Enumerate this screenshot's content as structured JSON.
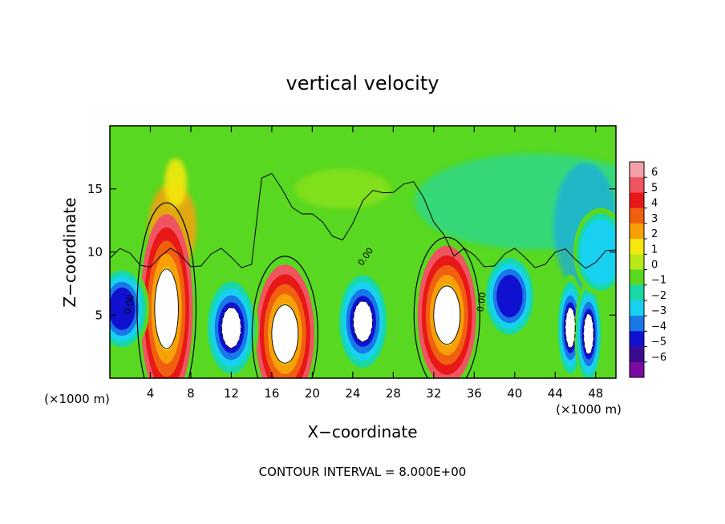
{
  "chart_data": {
    "type": "heatmap",
    "title": "vertical velocity",
    "xlabel": "X−coordinate",
    "ylabel": "Z−coordinate",
    "x_unit": "(×1000 m)",
    "y_unit": "(×1000 m)",
    "xlim": [
      0,
      50
    ],
    "ylim": [
      0,
      20
    ],
    "x_ticks": [
      4,
      8,
      12,
      16,
      20,
      24,
      28,
      32,
      36,
      40,
      44,
      48
    ],
    "y_ticks": [
      5,
      10,
      15
    ],
    "footer": "CONTOUR INTERVAL = 8.000E+00",
    "contour_label": "0.00",
    "colorbar": {
      "ticks": [
        6,
        5,
        4,
        3,
        2,
        1,
        0,
        -1,
        -2,
        -3,
        -4,
        -5,
        -6
      ],
      "tick_labels": [
        "6",
        "5",
        "4",
        "3",
        "2",
        "1",
        "0",
        "−1",
        "−2",
        "−3",
        "−4",
        "−5",
        "−6"
      ],
      "colors": [
        "#f5a0a8",
        "#ee5560",
        "#e81818",
        "#f06010",
        "#f8a008",
        "#f4e810",
        "#b8e818",
        "#58d820",
        "#18d8a8",
        "#18d0f0",
        "#1878e8",
        "#1010d0",
        "#3a0a90",
        "#780aa0"
      ]
    },
    "updrafts": [
      {
        "x": 5.6,
        "z": 5.5,
        "peak": 8
      },
      {
        "x": 17.3,
        "z": 3.5,
        "peak": 8
      },
      {
        "x": 33.3,
        "z": 5.0,
        "peak": 8
      }
    ],
    "downdrafts": [
      {
        "x": 1.2,
        "z": 5.5,
        "peak": -5
      },
      {
        "x": 12.0,
        "z": 4.0,
        "peak": -8
      },
      {
        "x": 25.0,
        "z": 4.5,
        "peak": -8
      },
      {
        "x": 39.5,
        "z": 6.5,
        "peak": -5
      },
      {
        "x": 45.5,
        "z": 4.0,
        "peak": -8
      },
      {
        "x": 47.3,
        "z": 3.5,
        "peak": -8
      },
      {
        "x": 48.5,
        "z": 10.0,
        "peak": -3
      }
    ]
  }
}
